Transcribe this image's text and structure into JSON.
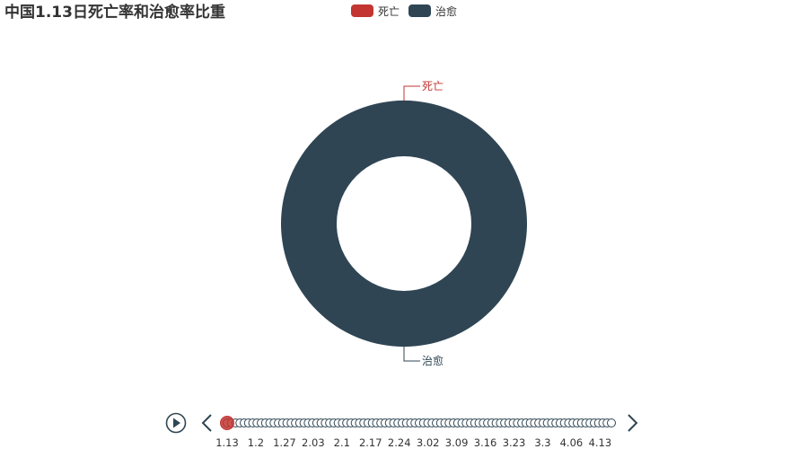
{
  "title": "中国1.13日死亡率和治愈率比重",
  "legend": [
    {
      "name": "死亡",
      "color": "#c23531"
    },
    {
      "name": "治愈",
      "color": "#2f4554"
    }
  ],
  "chart_data": {
    "type": "pie",
    "variant": "donut",
    "title": "中国1.13日死亡率和治愈率比重",
    "slices": [
      {
        "name": "死亡",
        "value": 0,
        "color": "#c23531"
      },
      {
        "name": "治愈",
        "value": 100,
        "color": "#2f4554"
      }
    ],
    "legend_position": "top-center"
  },
  "timeline": {
    "play_icon": "play-icon",
    "prev_icon": "chevron-left-icon",
    "next_icon": "chevron-right-icon",
    "current_index": 0,
    "point_count": 91,
    "tick_labels": [
      "1.13",
      "1.2",
      "1.27",
      "2.03",
      "2.1",
      "2.17",
      "2.24",
      "3.02",
      "3.09",
      "3.16",
      "3.23",
      "3.3",
      "4.06",
      "4.13"
    ],
    "active_color": "#c23531",
    "line_color": "#304654"
  }
}
